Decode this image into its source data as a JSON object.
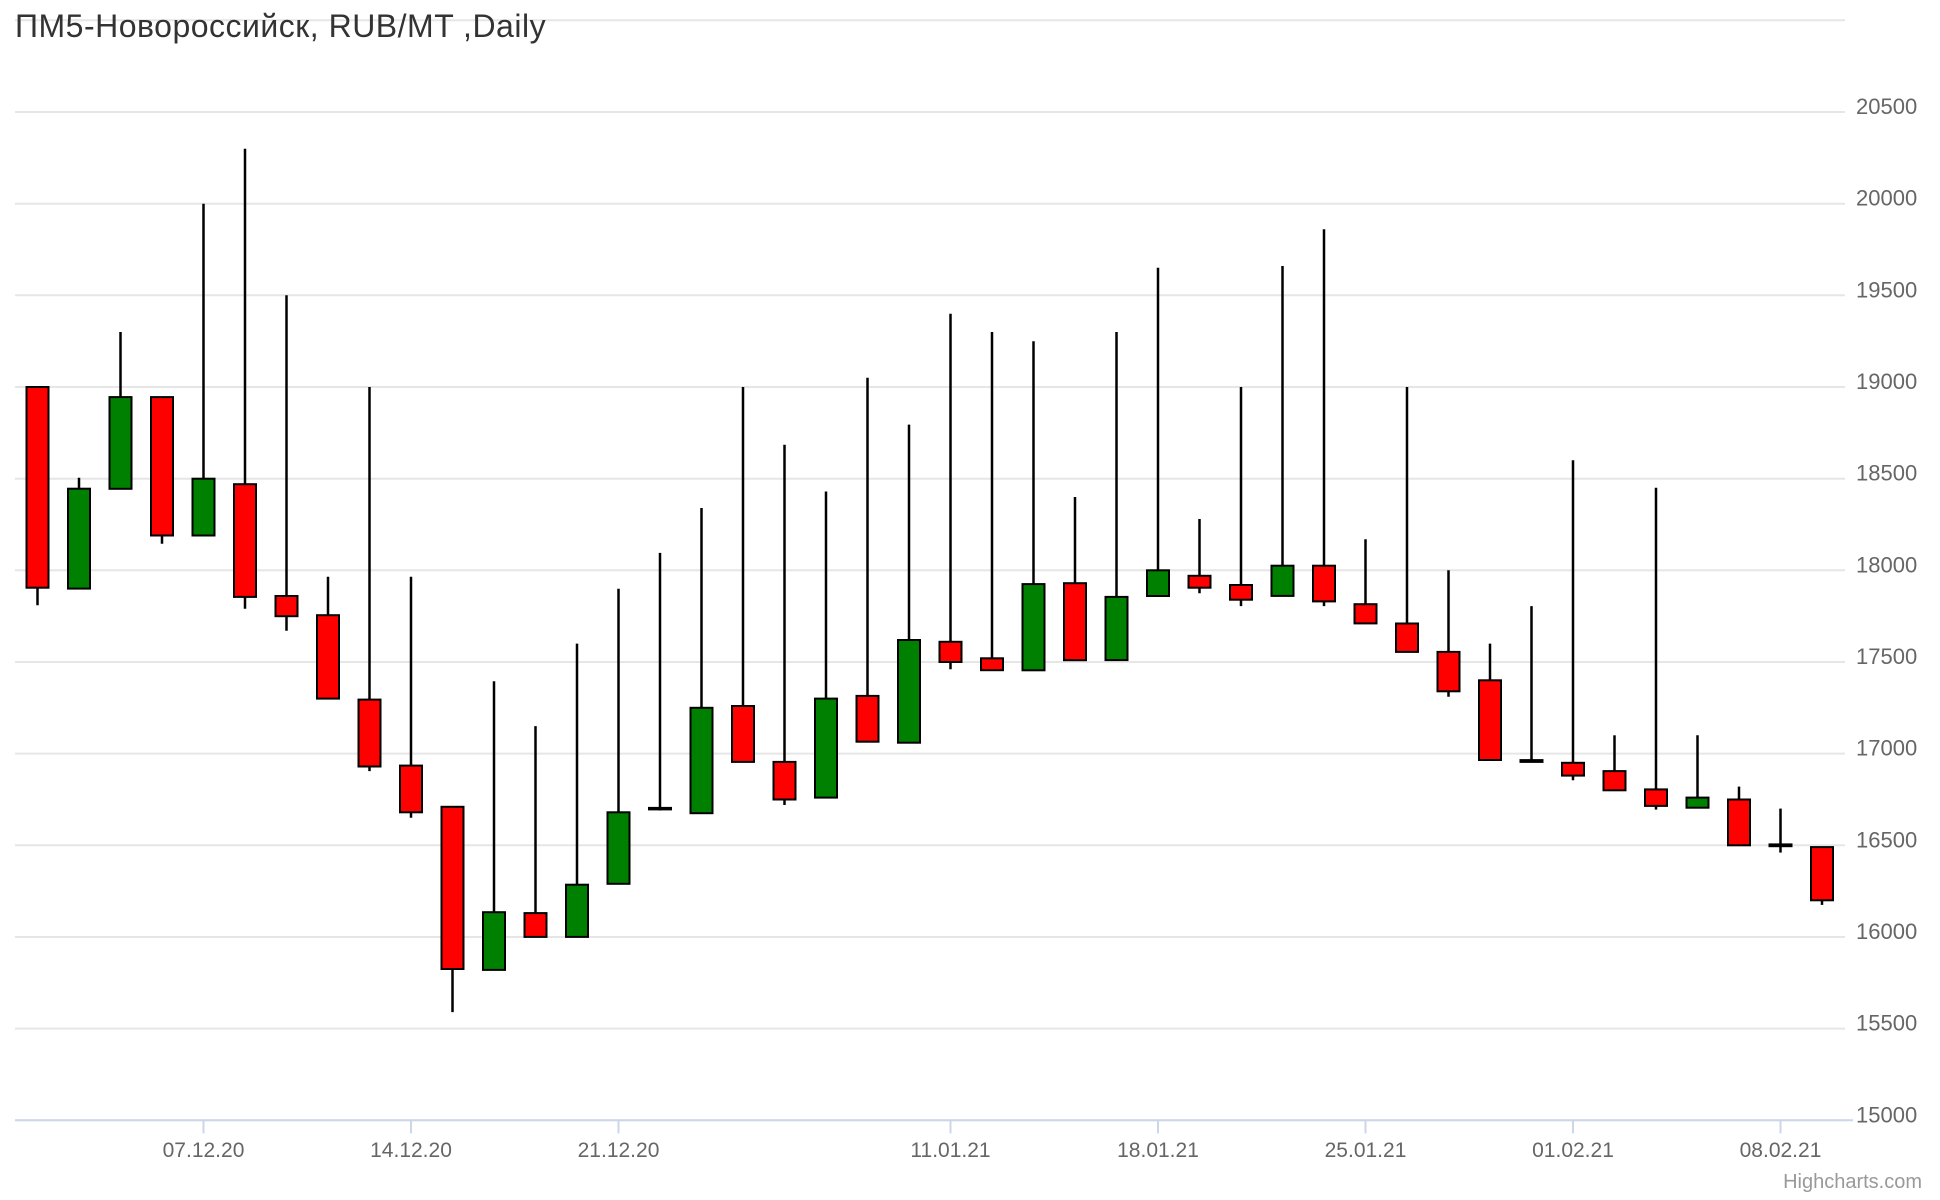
{
  "header": {
    "title": "ПМ5-Новороссийск, RUB/MT ,Daily"
  },
  "credits": {
    "label": "Highcharts.com"
  },
  "colors": {
    "up": "#008000",
    "down": "#ff0000",
    "outline": "#000000",
    "grid": "#e6e6e6",
    "axis": "#ccd6eb",
    "axis_label": "#666666",
    "title": "#333333",
    "credits": "#999999",
    "background": "#ffffff"
  },
  "chart_data": {
    "type": "candlestick",
    "title": "ПМ5-Новороссийск, RUB/MT ,Daily",
    "xlabel": "",
    "ylabel": "",
    "legend": false,
    "grid": "horizontal",
    "y_axis": {
      "min": 15000,
      "max": 21000,
      "tick_interval": 500,
      "labels_position": "right",
      "labeled_ticks": [
        20500,
        20000,
        19500,
        19000,
        18500,
        18000,
        17500,
        17000,
        16500,
        16000,
        15500,
        15000
      ],
      "unlabeled_top_gridline": 21000
    },
    "x_axis": {
      "ticks": [
        {
          "label": "07.12.20",
          "index": 4
        },
        {
          "label": "14.12.20",
          "index": 9
        },
        {
          "label": "21.12.20",
          "index": 14
        },
        {
          "label": "11.01.21",
          "index": 22
        },
        {
          "label": "18.01.21",
          "index": 27
        },
        {
          "label": "25.01.21",
          "index": 32
        },
        {
          "label": "01.02.21",
          "index": 37
        },
        {
          "label": "08.02.21",
          "index": 42
        }
      ]
    },
    "series": [
      {
        "open": 19000,
        "high": 19000,
        "low": 17810,
        "close": 17905
      },
      {
        "open": 17900,
        "high": 18505,
        "low": 17900,
        "close": 18445
      },
      {
        "open": 18445,
        "high": 19300,
        "low": 18445,
        "close": 18945
      },
      {
        "open": 18945,
        "high": 18945,
        "low": 18145,
        "close": 18190
      },
      {
        "open": 18190,
        "high": 20000,
        "low": 18190,
        "close": 18500
      },
      {
        "open": 18470,
        "high": 20300,
        "low": 17790,
        "close": 17855
      },
      {
        "open": 17860,
        "high": 19500,
        "low": 17670,
        "close": 17750
      },
      {
        "open": 17755,
        "high": 17965,
        "low": 17300,
        "close": 17300
      },
      {
        "open": 17295,
        "high": 19000,
        "low": 16905,
        "close": 16930
      },
      {
        "open": 16935,
        "high": 17965,
        "low": 16650,
        "close": 16680
      },
      {
        "open": 16710,
        "high": 16710,
        "low": 15590,
        "close": 15825
      },
      {
        "open": 15820,
        "high": 17395,
        "low": 15820,
        "close": 16135
      },
      {
        "open": 16130,
        "high": 17150,
        "low": 16000,
        "close": 16000
      },
      {
        "open": 16000,
        "high": 17600,
        "low": 16000,
        "close": 16285
      },
      {
        "open": 16290,
        "high": 17900,
        "low": 16290,
        "close": 16680
      },
      {
        "open": 16700,
        "high": 18095,
        "low": 16690,
        "close": 16695
      },
      {
        "open": 16675,
        "high": 18340,
        "low": 16675,
        "close": 17250
      },
      {
        "open": 17260,
        "high": 19000,
        "low": 16955,
        "close": 16955
      },
      {
        "open": 16955,
        "high": 18685,
        "low": 16720,
        "close": 16750
      },
      {
        "open": 16760,
        "high": 18430,
        "low": 16760,
        "close": 17300
      },
      {
        "open": 17315,
        "high": 19050,
        "low": 17065,
        "close": 17065
      },
      {
        "open": 17060,
        "high": 18795,
        "low": 17060,
        "close": 17620
      },
      {
        "open": 17610,
        "high": 19400,
        "low": 17460,
        "close": 17500
      },
      {
        "open": 17520,
        "high": 19300,
        "low": 17455,
        "close": 17455
      },
      {
        "open": 17455,
        "high": 19250,
        "low": 17455,
        "close": 17925
      },
      {
        "open": 17930,
        "high": 18400,
        "low": 17510,
        "close": 17510
      },
      {
        "open": 17510,
        "high": 19300,
        "low": 17510,
        "close": 17855
      },
      {
        "open": 17860,
        "high": 19650,
        "low": 17860,
        "close": 18000
      },
      {
        "open": 17970,
        "high": 18280,
        "low": 17875,
        "close": 17905
      },
      {
        "open": 17920,
        "high": 19000,
        "low": 17805,
        "close": 17840
      },
      {
        "open": 17860,
        "high": 19660,
        "low": 17860,
        "close": 18025
      },
      {
        "open": 18025,
        "high": 19860,
        "low": 17805,
        "close": 17830
      },
      {
        "open": 17815,
        "high": 18170,
        "low": 17710,
        "close": 17710
      },
      {
        "open": 17710,
        "high": 19000,
        "low": 17555,
        "close": 17555
      },
      {
        "open": 17555,
        "high": 18000,
        "low": 17310,
        "close": 17340
      },
      {
        "open": 17400,
        "high": 17600,
        "low": 16965,
        "close": 16965
      },
      {
        "open": 16965,
        "high": 17805,
        "low": 16955,
        "close": 16955
      },
      {
        "open": 16950,
        "high": 18600,
        "low": 16855,
        "close": 16880
      },
      {
        "open": 16905,
        "high": 17100,
        "low": 16800,
        "close": 16800
      },
      {
        "open": 16805,
        "high": 18450,
        "low": 16695,
        "close": 16715
      },
      {
        "open": 16705,
        "high": 17100,
        "low": 16705,
        "close": 16760
      },
      {
        "open": 16750,
        "high": 16820,
        "low": 16500,
        "close": 16500
      },
      {
        "open": 16505,
        "high": 16700,
        "low": 16460,
        "close": 16495
      },
      {
        "open": 16490,
        "high": 16490,
        "low": 16175,
        "close": 16200
      }
    ]
  }
}
